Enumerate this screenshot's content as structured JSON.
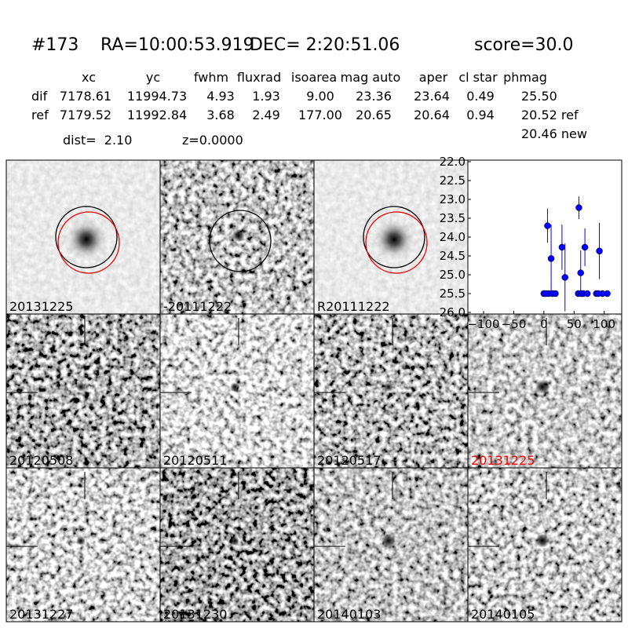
{
  "header": {
    "id": "#173",
    "ra": "RA=10:00:53.919",
    "dec": "DEC= 2:20:51.06",
    "score": "score=30.0"
  },
  "table": {
    "columns": [
      "xc",
      "yc",
      "fwhm",
      "fluxrad",
      "isoarea",
      "mag auto",
      "aper",
      "cl star",
      "phmag"
    ],
    "rows": [
      [
        "dif",
        "7178.61",
        "11994.73",
        "4.93",
        "1.93",
        "9.00",
        "23.36",
        "23.64",
        "0.49",
        "25.50"
      ],
      [
        "ref",
        "7179.52",
        "11992.84",
        "3.68",
        "2.49",
        "177.00",
        "20.65",
        "20.64",
        "0.94",
        "20.52 ref"
      ]
    ],
    "extra": "20.46 new"
  },
  "dist": "dist=  2.10",
  "z": "z=0.0000",
  "panels": [
    {
      "label": "20131225"
    },
    {
      "label": "-20111222"
    },
    {
      "label": "R20111222"
    },
    {
      "label": "20120508"
    },
    {
      "label": "20120511"
    },
    {
      "label": "20120517"
    },
    {
      "label": "20131225",
      "label_color": "red"
    },
    {
      "label": "20131227"
    },
    {
      "label": "20131230"
    },
    {
      "label": "20140103"
    },
    {
      "label": "20140105"
    }
  ],
  "chart_data": {
    "type": "scatter",
    "color": "#0000ff",
    "inverted_y": true,
    "x": [
      0,
      3,
      6,
      8,
      12,
      14,
      19,
      30,
      35,
      57,
      58,
      61,
      62,
      65,
      68,
      72,
      87,
      90,
      92,
      97,
      105
    ],
    "values": [
      25.5,
      25.5,
      23.7,
      25.5,
      24.57,
      25.5,
      25.5,
      24.27,
      25.07,
      25.5,
      23.22,
      24.95,
      25.5,
      25.5,
      24.27,
      25.5,
      25.5,
      25.5,
      24.37,
      25.5,
      25.5
    ],
    "errors": [
      0.05,
      0.05,
      0.45,
      0.05,
      0.9,
      0.05,
      0.05,
      0.6,
      0.9,
      0.05,
      0.3,
      0.6,
      0.05,
      0.05,
      0.5,
      0.05,
      0.05,
      0.05,
      0.75,
      0.05,
      0.05
    ],
    "xlim": [
      -126,
      129
    ],
    "ylim": [
      22,
      26
    ],
    "xticks": [
      {
        "value": -100,
        "label": "−100"
      },
      {
        "value": -50,
        "label": "−50"
      },
      0,
      50,
      100
    ],
    "yticks": [
      {
        "value": 22,
        "label": "22.0"
      },
      {
        "value": 22.5,
        "label": "22.5"
      },
      {
        "value": 23,
        "label": "23.0"
      },
      {
        "value": 23.5,
        "label": "23.5"
      },
      {
        "value": 24,
        "label": "24.0"
      },
      {
        "value": 24.5,
        "label": "24.5"
      },
      {
        "value": 25,
        "label": "25.0"
      },
      {
        "value": 25.5,
        "label": "25.5"
      },
      {
        "value": 26,
        "label": "26.0"
      }
    ]
  }
}
